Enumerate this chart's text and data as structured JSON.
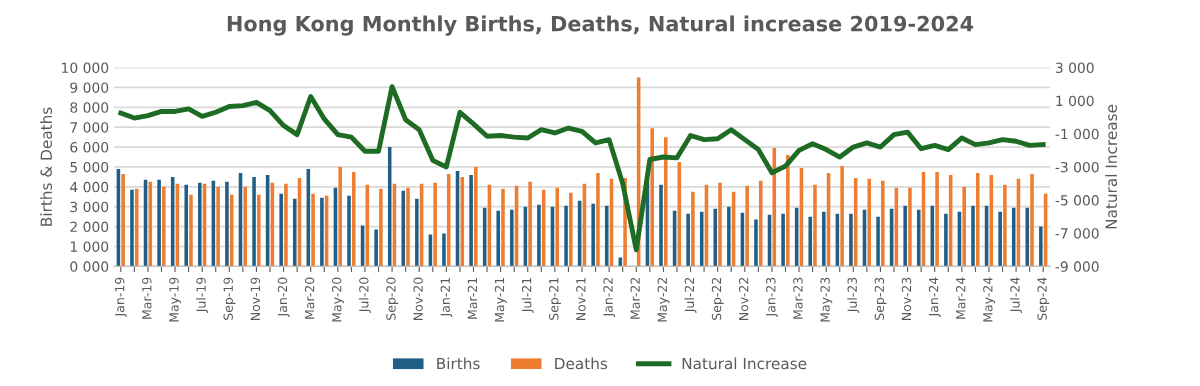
{
  "chart_data": {
    "type": "bar",
    "title": "Hong Kong Monthly Births, Deaths, Natural increase 2019-2024",
    "ylabel": "Births & Deaths",
    "y2label": "Natural Increase",
    "categories": [
      "Jan-19",
      null,
      "Mar-19",
      null,
      "May-19",
      null,
      "Jul-19",
      null,
      "Sep-19",
      null,
      "Nov-19",
      null,
      "Jan-20",
      null,
      "Mar-20",
      null,
      "May-20",
      null,
      "Jul-20",
      null,
      "Sep-20",
      null,
      "Nov-20",
      null,
      "Jan-21",
      null,
      "Mar-21",
      null,
      "May-21",
      null,
      "Jul-21",
      null,
      "Sep-21",
      null,
      "Nov-21",
      null,
      "Jan-22",
      null,
      "Mar-22",
      null,
      "May-22",
      null,
      "Jul-22",
      null,
      "Sep-22",
      null,
      "Nov-22",
      null,
      "Jan-23",
      null,
      "Mar-23",
      null,
      "May-23",
      null,
      "Jul-23",
      null,
      "Sep-23",
      null,
      "Nov-23",
      null,
      "Jan-24",
      null,
      "Mar-24",
      null,
      "May-24",
      null,
      "Jul-24",
      null,
      "Sep-24"
    ],
    "series": [
      {
        "name": "Births",
        "color": "#1f5f86",
        "values": [
          4900,
          3850,
          4350,
          4350,
          4500,
          4100,
          4200,
          4300,
          4250,
          4700,
          4500,
          4600,
          3650,
          3400,
          4900,
          3450,
          3950,
          3550,
          2050,
          1850,
          6000,
          3800,
          3400,
          1600,
          1650,
          4800,
          4600,
          2950,
          2800,
          2850,
          3000,
          3100,
          3000,
          3050,
          3300,
          3150,
          3050,
          450,
          null,
          4400,
          4100,
          2800,
          2650,
          2750,
          2900,
          3000,
          2700,
          2350,
          2600,
          2650,
          2950,
          2500,
          2750,
          2650,
          2650,
          2850,
          2500,
          2900,
          3050,
          2850,
          3050,
          2650,
          2750,
          3050,
          3050,
          2750,
          2950,
          2950,
          2000
        ]
      },
      {
        "name": "Deaths",
        "color": "#ed7d31",
        "values": [
          4650,
          3900,
          4250,
          4000,
          4150,
          3600,
          4150,
          4000,
          3600,
          4000,
          3600,
          4200,
          4150,
          4450,
          3650,
          3550,
          5000,
          4750,
          4100,
          3900,
          4150,
          3950,
          4150,
          4200,
          4650,
          4500,
          5000,
          4100,
          3900,
          4050,
          4250,
          3850,
          3950,
          3700,
          4150,
          4700,
          4400,
          4450,
          9500,
          6950,
          6500,
          5250,
          3750,
          4100,
          4200,
          3750,
          4050,
          4300,
          5950,
          5600,
          4950,
          4100,
          4700,
          5050,
          4450,
          4400,
          4300,
          3950,
          3950,
          4750,
          4750,
          4600,
          4000,
          4700,
          4600,
          4100,
          4400,
          4650,
          3650
        ]
      },
      {
        "name": "Natural Increase",
        "type": "line",
        "axis": "y2",
        "color": "#1e6b24",
        "values": [
          250,
          -50,
          100,
          350,
          350,
          500,
          50,
          300,
          650,
          700,
          900,
          400,
          -500,
          -1050,
          1250,
          -100,
          -1050,
          -1200,
          -2050,
          -2050,
          1850,
          -150,
          -750,
          -2600,
          -3000,
          300,
          -400,
          -1150,
          -1100,
          -1200,
          -1250,
          -750,
          -950,
          -650,
          -850,
          -1550,
          -1350,
          -4000,
          -8000,
          -2550,
          -2400,
          -2450,
          -1100,
          -1350,
          -1300,
          -750,
          -1350,
          -1950,
          -3350,
          -2950,
          -2000,
          -1600,
          -1950,
          -2400,
          -1800,
          -1550,
          -1800,
          -1050,
          -900,
          -1900,
          -1700,
          -1950,
          -1250,
          -1650,
          -1550,
          -1350,
          -1450,
          -1700,
          -1650
        ]
      }
    ],
    "ylim": [
      0,
      10000
    ],
    "yticks": [
      {
        "value": 0,
        "label": "0 000"
      },
      {
        "value": 1000,
        "label": "1 000"
      },
      {
        "value": 2000,
        "label": "2 000"
      },
      {
        "value": 3000,
        "label": "3 000"
      },
      {
        "value": 4000,
        "label": "4 000"
      },
      {
        "value": 5000,
        "label": "5 000"
      },
      {
        "value": 6000,
        "label": "6 000"
      },
      {
        "value": 7000,
        "label": "7 000"
      },
      {
        "value": 8000,
        "label": "8 000"
      },
      {
        "value": 9000,
        "label": "9 000"
      },
      {
        "value": 10000,
        "label": "10 000"
      }
    ],
    "y2lim": [
      -9000,
      3000
    ],
    "y2ticks": [
      {
        "value": -9000,
        "label": "-9 000"
      },
      {
        "value": -7000,
        "label": "-7 000"
      },
      {
        "value": -5000,
        "label": "-5 000"
      },
      {
        "value": -3000,
        "label": "-3 000"
      },
      {
        "value": -1000,
        "label": "-1 000"
      },
      {
        "value": 1000,
        "label": "1 000"
      },
      {
        "value": 3000,
        "label": "3 000"
      }
    ],
    "grid": "y",
    "legend": "bottom",
    "marker": "none",
    "line_style": "solid"
  }
}
